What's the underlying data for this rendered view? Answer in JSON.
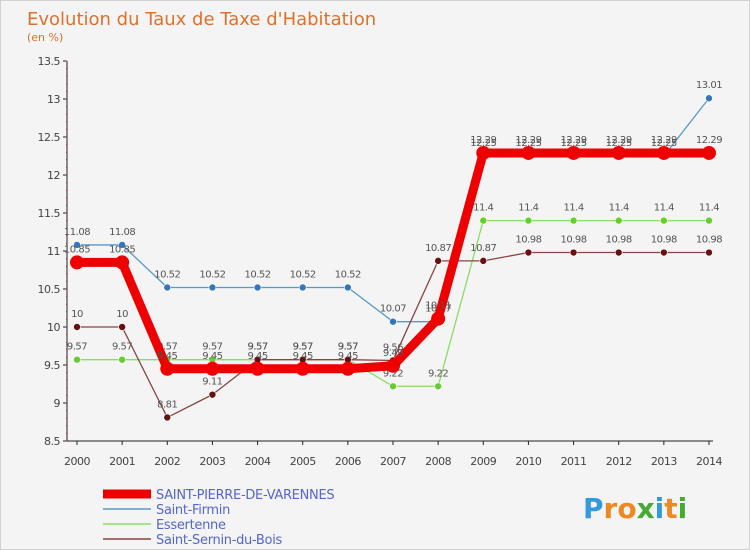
{
  "chart_data": {
    "type": "line",
    "title": "Evolution du Taux de Taxe d'Habitation",
    "subtitle": "(en %)",
    "xlabel": "",
    "ylabel": "",
    "ylim": [
      8.5,
      13.5
    ],
    "yticks": [
      "8.5",
      "9",
      "9.5",
      "10",
      "10.5",
      "11",
      "11.5",
      "12",
      "12.5",
      "13",
      "13.5"
    ],
    "categories": [
      "2000",
      "2001",
      "2002",
      "2003",
      "2004",
      "2005",
      "2006",
      "2007",
      "2008",
      "2009",
      "2010",
      "2011",
      "2012",
      "2013",
      "2014"
    ],
    "series": [
      {
        "name": "Saint-Firmin",
        "color": "#5599cc",
        "marker": "#3377bb",
        "values": [
          11.08,
          11.08,
          10.52,
          10.52,
          10.52,
          10.52,
          10.52,
          10.07,
          10.07,
          12.25,
          12.25,
          12.25,
          12.25,
          12.25,
          13.01
        ],
        "labels": [
          "11.08",
          "11.08",
          "10.52",
          "10.52",
          "10.52",
          "10.52",
          "10.52",
          "10.07",
          "10.07",
          "12.25",
          "12.25",
          "12.25",
          "12.25",
          "12.25",
          "13.01"
        ]
      },
      {
        "name": "Essertenne",
        "color": "#88dd66",
        "marker": "#66cc33",
        "values": [
          9.57,
          9.57,
          9.57,
          9.57,
          9.57,
          9.57,
          9.57,
          9.22,
          9.22,
          11.4,
          11.4,
          11.4,
          11.4,
          11.4,
          11.4
        ],
        "labels": [
          "9.57",
          "9.57",
          "9.57",
          "9.57",
          "9.57",
          "9.57",
          "9.57",
          "9.22",
          "9.22",
          "11.4",
          "11.4",
          "11.4",
          "11.4",
          "11.4",
          "11.4"
        ]
      },
      {
        "name": "Saint-Sernin-du-Bois",
        "color": "#884444",
        "marker": "#661111",
        "values": [
          10,
          10,
          8.81,
          9.11,
          9.57,
          9.57,
          9.57,
          9.56,
          10.87,
          10.87,
          10.98,
          10.98,
          10.98,
          10.98,
          10.98
        ],
        "labels": [
          "10",
          "10",
          "8.81",
          "9.11",
          "9.57",
          "9.57",
          "9.57",
          "9.56",
          "10.87",
          "10.87",
          "10.98",
          "10.98",
          "10.98",
          "10.98",
          "10.98"
        ]
      },
      {
        "name": "SAINT-PIERRE-DE-VARENNES",
        "color": "#ee0000",
        "marker": "#ee0000",
        "values": [
          10.85,
          10.85,
          9.45,
          9.45,
          9.45,
          9.45,
          9.45,
          9.49,
          10.11,
          12.29,
          12.29,
          12.29,
          12.29,
          12.29,
          12.29
        ],
        "labels": [
          "10.85",
          "10.85",
          "9.45",
          "9.45",
          "9.45",
          "9.45",
          "9.45",
          "9.49",
          "10.11",
          "12.29",
          "12.29",
          "12.29",
          "12.29",
          "12.29",
          "12.29"
        ]
      }
    ],
    "legend": [
      "SAINT-PIERRE-DE-VARENNES",
      "Saint-Firmin",
      "Essertenne",
      "Saint-Sernin-du-Bois"
    ],
    "legend_position": "bottom-left",
    "grid": false
  },
  "brand": {
    "letters": [
      "P",
      "r",
      "o",
      "x",
      "i",
      "t",
      "i"
    ],
    "colors": [
      "#3399dd",
      "#ee8822",
      "#ee8822",
      "#44aa33",
      "#3399dd",
      "#ee8822",
      "#44aa33"
    ]
  }
}
